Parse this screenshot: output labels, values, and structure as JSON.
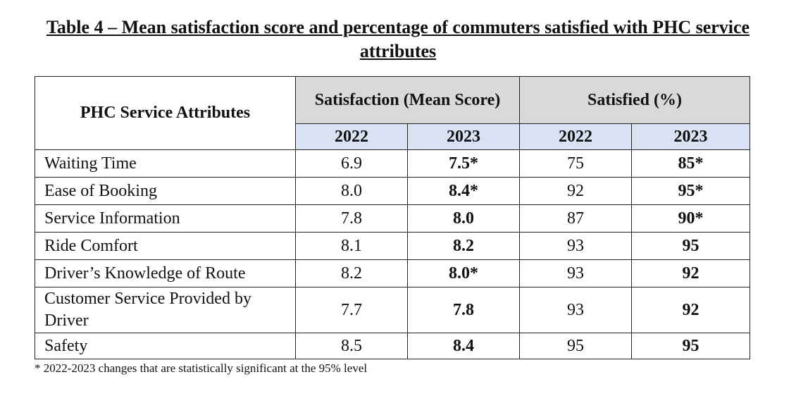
{
  "title": "Table 4 – Mean satisfaction score and percentage of commuters satisfied with PHC service attributes",
  "table": {
    "header_attribute": "PHC Service Attributes",
    "group_satisfaction": "Satisfaction (Mean Score)",
    "group_satisfied": "Satisfied (%)",
    "years": [
      "2022",
      "2023",
      "2022",
      "2023"
    ],
    "rows": [
      {
        "attribute": "Waiting Time",
        "sat_2022": "6.9",
        "sat_2023": "7.5*",
        "pct_2022": "75",
        "pct_2023": "85*"
      },
      {
        "attribute": "Ease of Booking",
        "sat_2022": "8.0",
        "sat_2023": "8.4*",
        "pct_2022": "92",
        "pct_2023": "95*"
      },
      {
        "attribute": "Service Information",
        "sat_2022": "7.8",
        "sat_2023": "8.0",
        "pct_2022": "87",
        "pct_2023": "90*"
      },
      {
        "attribute": "Ride Comfort",
        "sat_2022": "8.1",
        "sat_2023": "8.2",
        "pct_2022": "93",
        "pct_2023": "95"
      },
      {
        "attribute": "Driver’s Knowledge of Route",
        "sat_2022": "8.2",
        "sat_2023": "8.0*",
        "pct_2022": "93",
        "pct_2023": "92"
      },
      {
        "attribute": "Customer Service Provided by Driver",
        "sat_2022": "7.7",
        "sat_2023": "7.8",
        "pct_2022": "93",
        "pct_2023": "92"
      },
      {
        "attribute": "Safety",
        "sat_2022": "8.5",
        "sat_2023": "8.4",
        "pct_2022": "95",
        "pct_2023": "95"
      }
    ]
  },
  "footnote": "* 2022-2023 changes that are statistically significant at the 95% level"
}
